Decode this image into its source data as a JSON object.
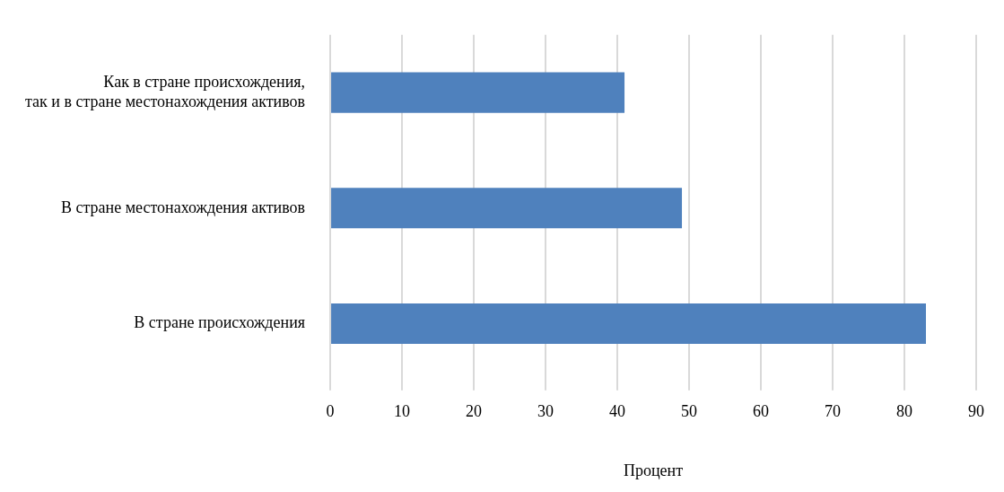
{
  "chart_data": {
    "type": "bar",
    "orientation": "horizontal",
    "xlabel": "Процент",
    "categories": [
      "Как в стране происхождения,\nтак и в стране местонахождения активов",
      "В стране местонахождения активов",
      "В стране происхождения"
    ],
    "values": [
      41,
      49,
      83
    ],
    "color": "#4f81bd",
    "xlim": [
      0,
      90
    ],
    "xticks": [
      0,
      10,
      20,
      30,
      40,
      50,
      60,
      70,
      80,
      90
    ],
    "grid": "x",
    "legend": false
  }
}
